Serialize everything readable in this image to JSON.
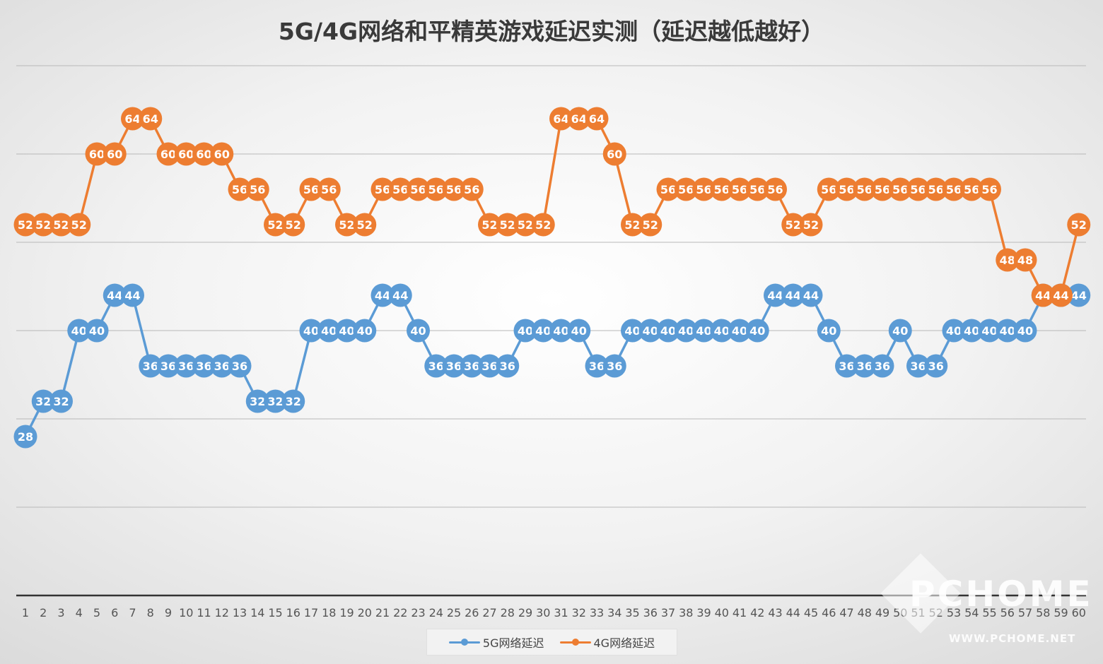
{
  "chart_data": {
    "type": "line",
    "title": "5G/4G网络和平精英游戏延迟实测（延迟越低越好）",
    "xlabel": "",
    "ylabel": "",
    "ylim": [
      10,
      70
    ],
    "grid": true,
    "legend_position": "bottom",
    "categories": [
      "1",
      "2",
      "3",
      "4",
      "5",
      "6",
      "7",
      "8",
      "9",
      "10",
      "11",
      "12",
      "13",
      "14",
      "15",
      "16",
      "17",
      "18",
      "19",
      "20",
      "21",
      "22",
      "23",
      "24",
      "25",
      "26",
      "27",
      "28",
      "29",
      "30",
      "31",
      "32",
      "33",
      "34",
      "35",
      "36",
      "37",
      "38",
      "39",
      "40",
      "41",
      "42",
      "43",
      "44",
      "45",
      "46",
      "47",
      "48",
      "49",
      "50",
      "51",
      "52",
      "53",
      "54",
      "55",
      "56",
      "57",
      "58",
      "59",
      "60"
    ],
    "series": [
      {
        "name": "5G网络延迟",
        "color": "#5b9bd5",
        "values": [
          28,
          32,
          32,
          40,
          40,
          44,
          44,
          36,
          36,
          36,
          36,
          36,
          36,
          32,
          32,
          32,
          40,
          40,
          40,
          40,
          44,
          44,
          40,
          36,
          36,
          36,
          36,
          36,
          40,
          40,
          40,
          40,
          36,
          36,
          40,
          40,
          40,
          40,
          40,
          40,
          40,
          40,
          44,
          44,
          44,
          40,
          36,
          36,
          36,
          40,
          36,
          36,
          40,
          40,
          40,
          40,
          40,
          44,
          44,
          44
        ]
      },
      {
        "name": "4G网络延迟",
        "color": "#ed7d31",
        "values": [
          52,
          52,
          52,
          52,
          60,
          60,
          64,
          64,
          60,
          60,
          60,
          60,
          56,
          56,
          52,
          52,
          56,
          56,
          52,
          52,
          56,
          56,
          56,
          56,
          56,
          56,
          52,
          52,
          52,
          52,
          64,
          64,
          64,
          60,
          52,
          52,
          56,
          56,
          56,
          56,
          56,
          56,
          56,
          52,
          52,
          56,
          56,
          56,
          56,
          56,
          56,
          56,
          56,
          56,
          56,
          48,
          48,
          44,
          44,
          52
        ]
      }
    ]
  },
  "watermark": {
    "logo": "PCHOME",
    "url": "WWW.PCHOME.NET"
  }
}
